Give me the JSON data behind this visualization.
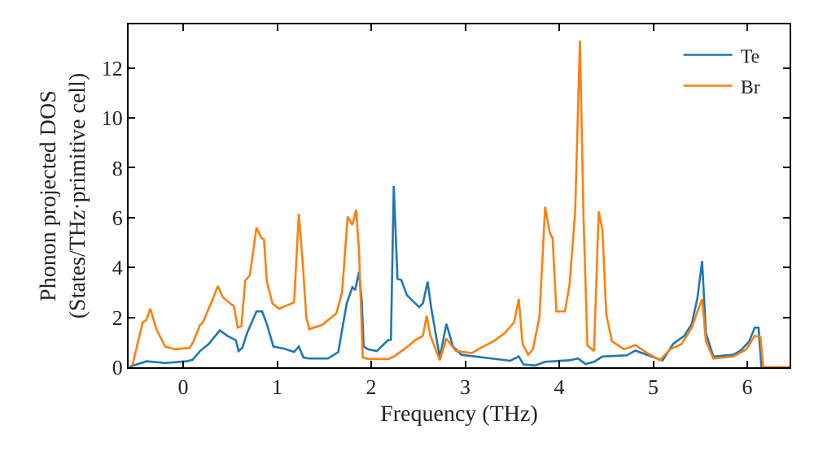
{
  "chart_data": {
    "type": "line",
    "xlabel": "Frequency (THz)",
    "ylabel": "Phonon projected DOS\n(States/THz·primitive cell)",
    "xlim": [
      -0.58,
      6.45
    ],
    "ylim": [
      0,
      13.75
    ],
    "xticks": [
      0,
      1,
      2,
      3,
      4,
      5,
      6
    ],
    "yticks": [
      0,
      2,
      4,
      6,
      8,
      10,
      12
    ],
    "legend": "top right",
    "marker": "none",
    "line_style": "solid",
    "series": [
      {
        "name": "Te",
        "color": "#1f77b4",
        "x": [
          -0.57,
          -0.39,
          -0.19,
          0.04,
          0.1,
          0.18,
          0.27,
          0.39,
          0.47,
          0.56,
          0.59,
          0.63,
          0.68,
          0.78,
          0.84,
          0.89,
          0.96,
          1.08,
          1.18,
          1.23,
          1.28,
          1.34,
          1.54,
          1.65,
          1.69,
          1.74,
          1.8,
          1.83,
          1.87,
          1.9,
          1.92,
          1.97,
          2.06,
          2.12,
          2.18,
          2.21,
          2.24,
          2.28,
          2.32,
          2.38,
          2.44,
          2.51,
          2.55,
          2.6,
          2.64,
          2.73,
          2.8,
          2.87,
          2.96,
          3.19,
          3.48,
          3.57,
          3.62,
          3.74,
          3.85,
          4.11,
          4.2,
          4.28,
          4.37,
          4.46,
          4.72,
          4.81,
          4.98,
          5.1,
          5.21,
          5.33,
          5.41,
          5.47,
          5.52,
          5.56,
          5.64,
          5.85,
          5.93,
          6.02,
          6.08,
          6.12,
          6.15,
          6.45
        ],
        "values": [
          0.02,
          0.24,
          0.17,
          0.24,
          0.3,
          0.65,
          0.93,
          1.48,
          1.26,
          1.09,
          0.65,
          0.78,
          1.37,
          2.24,
          2.24,
          1.74,
          0.83,
          0.74,
          0.61,
          0.83,
          0.39,
          0.35,
          0.35,
          0.61,
          1.48,
          2.56,
          3.21,
          3.1,
          3.82,
          2.67,
          0.83,
          0.72,
          0.65,
          0.87,
          1.09,
          1.1,
          7.27,
          3.54,
          3.5,
          2.89,
          2.67,
          2.41,
          2.56,
          3.43,
          2.35,
          0.39,
          1.74,
          0.83,
          0.5,
          0.39,
          0.26,
          0.43,
          0.11,
          0.07,
          0.22,
          0.28,
          0.35,
          0.13,
          0.22,
          0.43,
          0.48,
          0.67,
          0.43,
          0.28,
          0.93,
          1.26,
          1.74,
          2.78,
          4.26,
          1.37,
          0.43,
          0.5,
          0.67,
          1.04,
          1.59,
          1.59,
          0,
          0
        ]
      },
      {
        "name": "Br",
        "color": "#ff7f0e",
        "x": [
          -0.54,
          -0.43,
          -0.39,
          -0.35,
          -0.28,
          -0.19,
          -0.08,
          0.07,
          0.11,
          0.18,
          0.21,
          0.3,
          0.37,
          0.42,
          0.5,
          0.54,
          0.58,
          0.62,
          0.66,
          0.71,
          0.78,
          0.83,
          0.86,
          0.89,
          0.95,
          1.02,
          1.18,
          1.23,
          1.27,
          1.31,
          1.34,
          1.48,
          1.63,
          1.69,
          1.75,
          1.8,
          1.84,
          1.87,
          1.91,
          1.97,
          2.18,
          2.24,
          2.35,
          2.47,
          2.55,
          2.59,
          2.63,
          2.67,
          2.73,
          2.8,
          2.9,
          3.07,
          3.19,
          3.3,
          3.42,
          3.52,
          3.57,
          3.61,
          3.67,
          3.72,
          3.79,
          3.85,
          3.9,
          3.93,
          3.97,
          4.06,
          4.11,
          4.17,
          4.22,
          4.26,
          4.3,
          4.37,
          4.42,
          4.46,
          4.5,
          4.56,
          4.69,
          4.81,
          4.92,
          5.07,
          5.18,
          5.3,
          5.41,
          5.47,
          5.52,
          5.56,
          5.64,
          5.85,
          5.99,
          6.08,
          6.14,
          6.17,
          6.45
        ],
        "values": [
          0.07,
          1.8,
          1.9,
          2.35,
          1.48,
          0.83,
          0.72,
          0.78,
          1.04,
          1.7,
          1.8,
          2.6,
          3.26,
          2.82,
          2.56,
          2.45,
          1.59,
          1.65,
          3.47,
          3.69,
          5.6,
          5.2,
          5.12,
          3.43,
          2.56,
          2.35,
          2.6,
          6.15,
          4.3,
          2.02,
          1.52,
          1.7,
          2.17,
          3.0,
          6.04,
          5.71,
          6.32,
          4.73,
          0.39,
          0.33,
          0.33,
          0.43,
          0.72,
          1.09,
          1.26,
          2.06,
          1.26,
          0.87,
          0.28,
          1.15,
          0.65,
          0.57,
          0.83,
          1.04,
          1.37,
          1.8,
          2.74,
          0.93,
          0.5,
          0.72,
          2.02,
          6.43,
          5.39,
          5.17,
          2.24,
          2.24,
          3.32,
          6.25,
          13.1,
          5.82,
          0.87,
          0.65,
          6.25,
          5.49,
          2.13,
          1.04,
          0.72,
          0.89,
          0.61,
          0.28,
          0.72,
          0.93,
          1.59,
          2.24,
          2.74,
          1.04,
          0.35,
          0.43,
          0.72,
          1.26,
          1.22,
          0,
          0
        ]
      }
    ]
  }
}
